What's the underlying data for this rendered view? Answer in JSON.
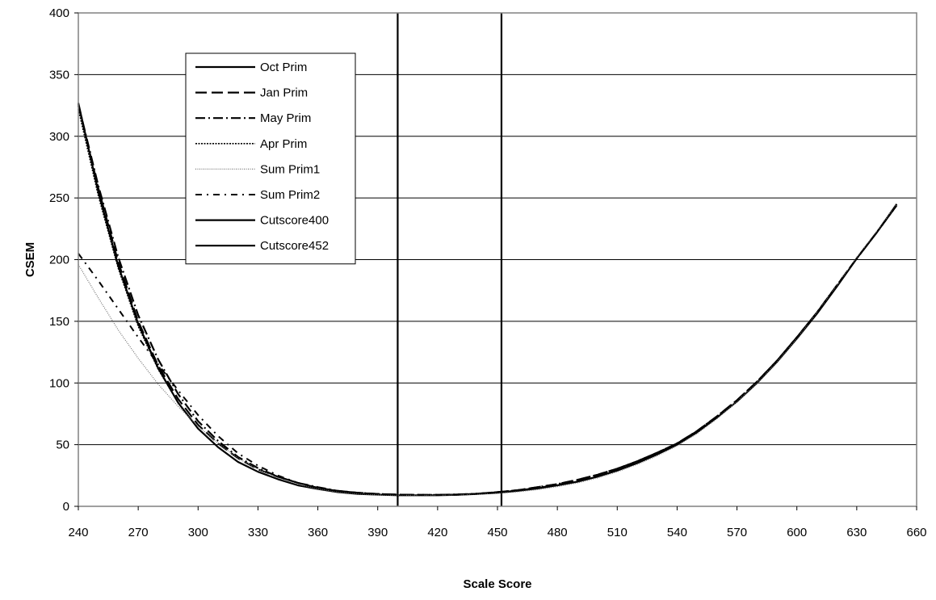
{
  "chart_data": {
    "type": "line",
    "title": "",
    "xlabel": "Scale Score",
    "ylabel": "CSEM",
    "xlim": [
      240,
      660
    ],
    "ylim": [
      0,
      400
    ],
    "x_ticks": [
      240,
      270,
      300,
      330,
      360,
      390,
      420,
      450,
      480,
      510,
      540,
      570,
      600,
      630,
      660
    ],
    "y_ticks": [
      0,
      50,
      100,
      150,
      200,
      250,
      300,
      350,
      400
    ],
    "grid": "horizontal",
    "legend_position": "upper-left inside plot",
    "series": [
      {
        "name": "Oct Prim",
        "style": "solid",
        "color": "#000000",
        "x": [
          240,
          250,
          260,
          270,
          280,
          290,
          300,
          310,
          320,
          330,
          340,
          350,
          360,
          370,
          380,
          390,
          400,
          410,
          420,
          430,
          440,
          450,
          460,
          470,
          480,
          490,
          500,
          510,
          520,
          530,
          540,
          550,
          560,
          570,
          580,
          590,
          600,
          610,
          620,
          630,
          640,
          650
        ],
        "y": [
          327,
          255,
          195,
          148,
          112,
          84,
          63,
          48,
          36,
          28,
          22,
          17,
          14,
          11.5,
          10,
          9.5,
          9,
          9,
          9,
          9.3,
          10,
          11,
          12.5,
          14.5,
          17,
          20,
          24,
          29,
          35,
          42,
          50,
          60,
          72,
          85,
          100,
          117,
          136,
          156,
          178,
          201,
          222,
          245
        ]
      },
      {
        "name": "Jan Prim",
        "style": "long-dash",
        "color": "#000000",
        "x": [
          240,
          250,
          260,
          270,
          280,
          290,
          300,
          310,
          320,
          330,
          340,
          350,
          360,
          370,
          380,
          390,
          400,
          410,
          420,
          430,
          440,
          450,
          460,
          470,
          480,
          490,
          500,
          510,
          520,
          530,
          540,
          550,
          560,
          570,
          580,
          590,
          600,
          610,
          620,
          630,
          640,
          650
        ],
        "y": [
          325,
          258,
          198,
          150,
          114,
          87,
          66,
          51,
          39,
          30,
          24,
          19,
          15,
          12.5,
          11,
          10,
          9.5,
          9.3,
          9.3,
          9.5,
          10.2,
          11.5,
          13,
          15.5,
          18,
          21.5,
          25.5,
          30.5,
          36.5,
          43.5,
          51,
          61,
          73,
          86,
          101,
          118,
          137,
          157,
          179,
          201,
          222,
          244
        ]
      },
      {
        "name": "May Prim",
        "style": "dash-dot",
        "color": "#000000",
        "x": [
          240,
          250,
          260,
          270,
          280,
          290,
          300,
          310,
          320,
          330,
          340,
          350,
          360,
          370,
          380,
          390,
          400,
          410,
          420,
          430,
          440,
          450,
          460,
          470,
          480,
          490,
          500,
          510,
          520,
          530,
          540,
          550,
          560,
          570,
          580,
          590,
          600,
          610,
          620,
          630,
          640,
          650
        ],
        "y": [
          326,
          260,
          202,
          155,
          119,
          91,
          69,
          53,
          40,
          31,
          24,
          19,
          15.5,
          12.5,
          11,
          10,
          9.5,
          9.3,
          9.3,
          9.6,
          10.3,
          11.5,
          13,
          15.5,
          18,
          21.5,
          25.5,
          30.5,
          36.5,
          43.5,
          51,
          61,
          73,
          86,
          101,
          118,
          137,
          157,
          179,
          201,
          222,
          244
        ]
      },
      {
        "name": "Apr Prim",
        "style": "dotted",
        "color": "#000000",
        "x": [
          240,
          250,
          260,
          270,
          280,
          290,
          300,
          310,
          320,
          330,
          340,
          350,
          360,
          370,
          380,
          390,
          400,
          410,
          420,
          430,
          440,
          450,
          460,
          470,
          480,
          490,
          500,
          510,
          520,
          530,
          540,
          550,
          560,
          570,
          580,
          590,
          600,
          610,
          620,
          630,
          640,
          650
        ],
        "y": [
          322,
          252,
          193,
          146,
          111,
          84,
          63,
          48,
          36,
          28,
          22,
          17,
          14,
          11.5,
          10,
          9.5,
          9,
          9,
          9,
          9.3,
          10,
          11,
          12.5,
          14.5,
          17,
          20,
          24,
          29,
          35,
          42,
          50,
          60,
          72,
          85,
          100,
          117,
          136,
          156,
          178,
          201,
          222,
          245
        ]
      },
      {
        "name": "Sum Prim1",
        "style": "fine-dotted",
        "color": "#777777",
        "x": [
          240,
          250,
          260,
          270,
          280,
          290,
          300,
          310,
          320,
          330,
          340,
          350,
          360,
          370,
          380,
          390,
          400,
          410,
          420,
          430,
          440,
          450,
          460,
          470,
          480,
          490,
          500,
          510,
          520,
          530,
          540,
          550,
          560,
          570,
          580,
          590,
          600,
          610,
          620,
          630,
          640,
          650
        ],
        "y": [
          196,
          169,
          143,
          120,
          99,
          81,
          65,
          51,
          39,
          30,
          23,
          18,
          14,
          11.5,
          10,
          9.3,
          9,
          9,
          9,
          9.2,
          9.7,
          10.5,
          11.8,
          13.5,
          16,
          19,
          23,
          28,
          34,
          41,
          49,
          59,
          71,
          85,
          100,
          117,
          136,
          157,
          179,
          202,
          223,
          245
        ]
      },
      {
        "name": "Sum Prim2",
        "style": "dash-dot-spaced",
        "color": "#000000",
        "x": [
          240,
          250,
          260,
          270,
          280,
          290,
          300,
          310,
          320,
          330,
          340,
          350,
          360,
          370,
          380,
          390,
          400,
          410,
          420,
          430,
          440,
          450,
          460,
          470,
          480,
          490,
          500,
          510,
          520,
          530,
          540,
          550,
          560,
          570,
          580,
          590,
          600,
          610,
          620,
          630,
          640,
          650
        ],
        "y": [
          205,
          183,
          160,
          137,
          115,
          94,
          74,
          57,
          43,
          33,
          25,
          19,
          15,
          12.5,
          11,
          10,
          9.5,
          9.3,
          9.3,
          9.6,
          10.2,
          11.3,
          12.8,
          15,
          17.5,
          21,
          25,
          30,
          36,
          43,
          51,
          61,
          73,
          86,
          101,
          118,
          137,
          157,
          179,
          201,
          222,
          244
        ]
      }
    ],
    "vertical_lines": [
      {
        "name": "Cutscore400",
        "x": 400,
        "style": "solid"
      },
      {
        "name": "Cutscore452",
        "x": 452,
        "style": "solid"
      }
    ]
  }
}
